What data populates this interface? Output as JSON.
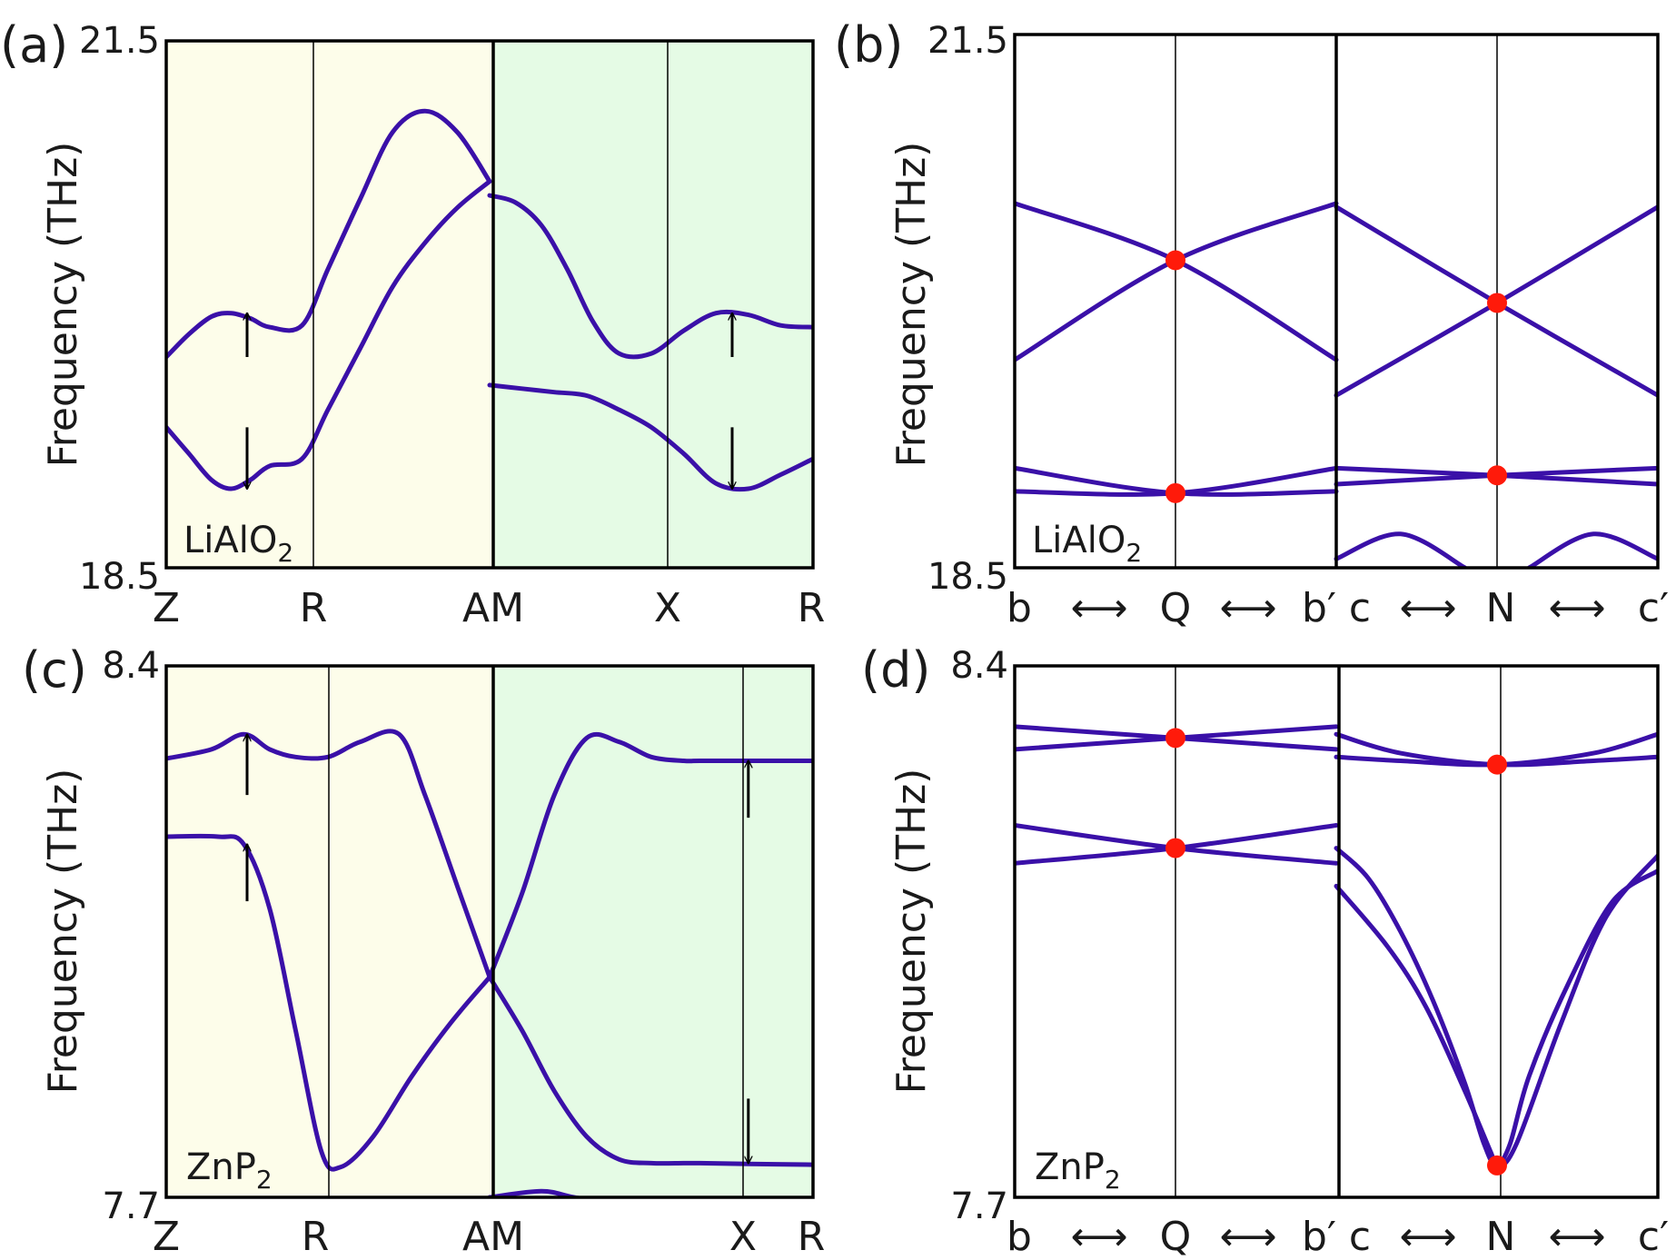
{
  "colors": {
    "curve": "#3a10a8",
    "shade_left": "#fdfdea",
    "shade_right": "#e5fbe5",
    "dot": "#ff1a0a"
  },
  "chart_data": [
    {
      "type": "line",
      "panel": "(a)",
      "material": "LiAlO",
      "material_sub": "2",
      "ylabel": "Frequency (THz)",
      "ylim": [
        18.5,
        21.5
      ],
      "ytick_top": "21.5",
      "ytick_bottom": "18.5",
      "xticks": [
        "Z",
        "R",
        "AM",
        "X",
        "R"
      ],
      "x": [
        0,
        0.25,
        0.5,
        0.75,
        1.0
      ],
      "segments_shaded": [
        "left",
        "right"
      ],
      "series": [
        {
          "name": "left upper band",
          "x": [
            0,
            0.035,
            0.07,
            0.1,
            0.13,
            0.16,
            0.21,
            0.25,
            0.3,
            0.35,
            0.4,
            0.45,
            0.5
          ],
          "values": [
            19.7,
            19.83,
            19.93,
            19.95,
            19.92,
            19.87,
            19.88,
            20.2,
            20.6,
            20.98,
            21.1,
            20.98,
            20.7
          ]
        },
        {
          "name": "left lower band",
          "x": [
            0,
            0.035,
            0.07,
            0.1,
            0.13,
            0.16,
            0.21,
            0.25,
            0.3,
            0.35,
            0.4,
            0.45,
            0.5
          ],
          "values": [
            19.3,
            19.15,
            19.0,
            18.95,
            19.0,
            19.08,
            19.12,
            19.4,
            19.75,
            20.1,
            20.35,
            20.55,
            20.7
          ]
        },
        {
          "name": "right upper band",
          "x": [
            0.5,
            0.54,
            0.58,
            0.62,
            0.66,
            0.7,
            0.75,
            0.8,
            0.85,
            0.9,
            0.95,
            1.0
          ],
          "values": [
            20.62,
            20.58,
            20.45,
            20.2,
            19.9,
            19.72,
            19.72,
            19.85,
            19.95,
            19.94,
            19.88,
            19.87
          ]
        },
        {
          "name": "right lower band",
          "x": [
            0.5,
            0.55,
            0.6,
            0.65,
            0.7,
            0.75,
            0.8,
            0.85,
            0.9,
            0.95,
            1.0
          ],
          "values": [
            19.54,
            19.52,
            19.5,
            19.48,
            19.4,
            19.3,
            19.15,
            18.98,
            18.95,
            19.03,
            19.12
          ]
        }
      ],
      "annotations": [
        {
          "type": "arrow-up",
          "x": 0.125,
          "from": 19.7,
          "to": 19.95
        },
        {
          "type": "arrow-down",
          "x": 0.125,
          "from": 19.3,
          "to": 18.95
        },
        {
          "type": "arrow-up",
          "x": 0.875,
          "from": 19.7,
          "to": 19.95
        },
        {
          "type": "arrow-down",
          "x": 0.875,
          "from": 19.3,
          "to": 18.95
        }
      ]
    },
    {
      "type": "line",
      "panel": "(b)",
      "material": "LiAlO",
      "material_sub": "2",
      "ylabel": "Frequency (THz)",
      "ylim": [
        18.5,
        21.5
      ],
      "ytick_top": "21.5",
      "ytick_bottom": "18.5",
      "xticks": [
        "b",
        "Q",
        "b′",
        "c",
        "N",
        "c′"
      ],
      "x": [
        0,
        0.25,
        0.5,
        0.5,
        0.75,
        1.0
      ],
      "arrow_glyph": "⟷",
      "series": [
        {
          "name": "Q band 1",
          "x": [
            0,
            0.25,
            0.5
          ],
          "values": [
            20.55,
            20.23,
            19.67
          ]
        },
        {
          "name": "Q band 2",
          "x": [
            0,
            0.25,
            0.5
          ],
          "values": [
            19.67,
            20.23,
            20.55
          ]
        },
        {
          "name": "Q band 3",
          "x": [
            0,
            0.25,
            0.5
          ],
          "values": [
            19.06,
            18.92,
            18.93
          ]
        },
        {
          "name": "Q band 4",
          "x": [
            0,
            0.25,
            0.5
          ],
          "values": [
            18.93,
            18.92,
            19.06
          ]
        },
        {
          "name": "N band 1",
          "x": [
            0.5,
            0.75,
            1.0
          ],
          "values": [
            20.53,
            19.99,
            19.47
          ]
        },
        {
          "name": "N band 2",
          "x": [
            0.5,
            0.75,
            1.0
          ],
          "values": [
            19.47,
            19.99,
            20.53
          ]
        },
        {
          "name": "N band 3",
          "x": [
            0.5,
            0.75,
            1.0
          ],
          "values": [
            19.06,
            19.02,
            18.97
          ]
        },
        {
          "name": "N band 4",
          "x": [
            0.5,
            0.75,
            1.0
          ],
          "values": [
            18.97,
            19.02,
            19.06
          ]
        },
        {
          "name": "N low branch",
          "x": [
            0.5,
            0.6,
            0.7
          ],
          "values": [
            18.55,
            18.69,
            18.5
          ]
        },
        {
          "name": "N low branch 2",
          "x": [
            0.8,
            0.9,
            1.0
          ],
          "values": [
            18.5,
            18.69,
            18.55
          ]
        }
      ],
      "degenerate_points": [
        {
          "x": 0.25,
          "y": 20.23
        },
        {
          "x": 0.75,
          "y": 19.99
        },
        {
          "x": 0.25,
          "y": 18.92
        },
        {
          "x": 0.75,
          "y": 19.02
        }
      ]
    },
    {
      "type": "line",
      "panel": "(c)",
      "material": "ZnP",
      "material_sub": "2",
      "ylabel": "Frequency (THz)",
      "ylim": [
        7.7,
        8.4
      ],
      "ytick_top": "8.4",
      "ytick_bottom": "7.7",
      "xticks": [
        "Z",
        "R",
        "AM",
        "X",
        "R"
      ],
      "x": [
        0,
        0.25,
        0.5,
        0.825,
        1.0
      ],
      "segments_shaded": [
        "left",
        "right"
      ],
      "series": [
        {
          "name": "left upper band",
          "x": [
            0,
            0.07,
            0.12,
            0.16,
            0.2,
            0.25,
            0.3,
            0.36,
            0.4,
            0.45,
            0.5
          ],
          "values": [
            8.278,
            8.29,
            8.31,
            8.29,
            8.28,
            8.28,
            8.3,
            8.31,
            8.23,
            8.11,
            7.99
          ]
        },
        {
          "name": "left lower band",
          "x": [
            0,
            0.08,
            0.12,
            0.16,
            0.2,
            0.24,
            0.27,
            0.32,
            0.38,
            0.44,
            0.5
          ],
          "values": [
            8.175,
            8.175,
            8.165,
            8.08,
            7.92,
            7.76,
            7.74,
            7.78,
            7.86,
            7.93,
            7.99
          ]
        },
        {
          "name": "right band 1",
          "x": [
            0.5,
            0.55,
            0.6,
            0.65,
            0.7,
            0.75,
            0.8,
            0.825,
            0.9,
            1.0
          ],
          "values": [
            7.99,
            8.1,
            8.23,
            8.305,
            8.3,
            8.28,
            8.275,
            8.275,
            8.275,
            8.275
          ]
        },
        {
          "name": "right band 2",
          "x": [
            0.5,
            0.55,
            0.6,
            0.65,
            0.7,
            0.75,
            0.8,
            0.825,
            0.9,
            1.0
          ],
          "values": [
            7.99,
            7.92,
            7.84,
            7.78,
            7.75,
            7.745,
            7.745,
            7.745,
            7.744,
            7.743
          ]
        },
        {
          "name": "right low branch",
          "x": [
            0.5,
            0.58,
            0.63,
            0.7
          ],
          "values": [
            7.7,
            7.708,
            7.7,
            7.69
          ]
        }
      ],
      "annotations": [
        {
          "type": "arrow-up",
          "x": 0.125,
          "from": 8.23,
          "to": 8.31
        },
        {
          "type": "arrow-up",
          "x": 0.125,
          "from": 8.09,
          "to": 8.165
        },
        {
          "type": "arrow-up",
          "x": 0.9,
          "from": 8.2,
          "to": 8.275
        },
        {
          "type": "arrow-down",
          "x": 0.9,
          "from": 7.83,
          "to": 7.745
        }
      ]
    },
    {
      "type": "line",
      "panel": "(d)",
      "material": "ZnP",
      "material_sub": "2",
      "ylabel": "Frequency (THz)",
      "ylim": [
        7.7,
        8.4
      ],
      "ytick_top": "8.4",
      "ytick_bottom": "7.7",
      "xticks": [
        "b",
        "Q",
        "b′",
        "c",
        "N",
        "c′"
      ],
      "x": [
        0,
        0.25,
        0.5,
        0.5,
        0.75,
        1.0
      ],
      "arrow_glyph": "⟷",
      "series": [
        {
          "name": "Q band 1",
          "x": [
            0,
            0.25,
            0.5
          ],
          "values": [
            8.32,
            8.305,
            8.29
          ]
        },
        {
          "name": "Q band 2",
          "x": [
            0,
            0.25,
            0.5
          ],
          "values": [
            8.29,
            8.305,
            8.32
          ]
        },
        {
          "name": "Q band 3",
          "x": [
            0,
            0.25,
            0.5
          ],
          "values": [
            8.19,
            8.16,
            8.14
          ]
        },
        {
          "name": "Q band 4",
          "x": [
            0,
            0.25,
            0.5
          ],
          "values": [
            8.14,
            8.16,
            8.19
          ]
        },
        {
          "name": "N band 1",
          "x": [
            0.5,
            0.6,
            0.75,
            0.9,
            1.0
          ],
          "values": [
            8.31,
            8.285,
            8.27,
            8.275,
            8.28
          ]
        },
        {
          "name": "N band 2",
          "x": [
            0.5,
            0.6,
            0.75,
            0.9,
            1.0
          ],
          "values": [
            8.28,
            8.275,
            8.27,
            8.285,
            8.31
          ]
        },
        {
          "name": "N band 3",
          "x": [
            0.5,
            0.55,
            0.6,
            0.65,
            0.7,
            0.73,
            0.75,
            0.78,
            0.85,
            0.92,
            1.0
          ],
          "values": [
            8.16,
            8.12,
            8.05,
            7.96,
            7.85,
            7.77,
            7.742,
            7.77,
            7.93,
            8.07,
            8.15
          ]
        },
        {
          "name": "N band 4",
          "x": [
            0.5,
            0.58,
            0.64,
            0.7,
            0.74,
            0.75,
            0.77,
            0.8,
            0.86,
            0.93,
            1.0
          ],
          "values": [
            8.11,
            8.03,
            7.95,
            7.84,
            7.76,
            7.742,
            7.77,
            7.86,
            7.98,
            8.09,
            8.13
          ]
        }
      ],
      "degenerate_points": [
        {
          "x": 0.25,
          "y": 8.305
        },
        {
          "x": 0.25,
          "y": 8.16
        },
        {
          "x": 0.75,
          "y": 8.27
        },
        {
          "x": 0.75,
          "y": 7.742
        }
      ]
    }
  ]
}
